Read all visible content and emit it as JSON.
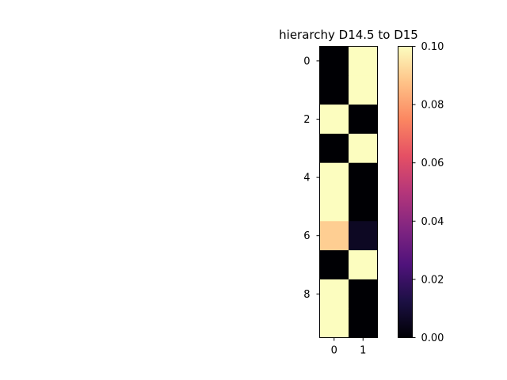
{
  "chart_data": {
    "type": "heatmap",
    "title": "hierarchy D14.5 to D15",
    "x_ticks": [
      "0",
      "1"
    ],
    "y_ticks": [
      "0",
      "2",
      "4",
      "6",
      "8"
    ],
    "rows": 10,
    "cols": 2,
    "values": [
      [
        0.0,
        0.1
      ],
      [
        0.0,
        0.1
      ],
      [
        0.1,
        0.0
      ],
      [
        0.0,
        0.1
      ],
      [
        0.1,
        0.0
      ],
      [
        0.1,
        0.0
      ],
      [
        0.09,
        0.006
      ],
      [
        0.0,
        0.1
      ],
      [
        0.1,
        0.0
      ],
      [
        0.1,
        0.0
      ]
    ],
    "colormap": "magma",
    "vmin": 0.0,
    "vmax": 0.1,
    "colorbar_ticks": [
      "0.00",
      "0.02",
      "0.04",
      "0.06",
      "0.08",
      "0.10"
    ]
  }
}
